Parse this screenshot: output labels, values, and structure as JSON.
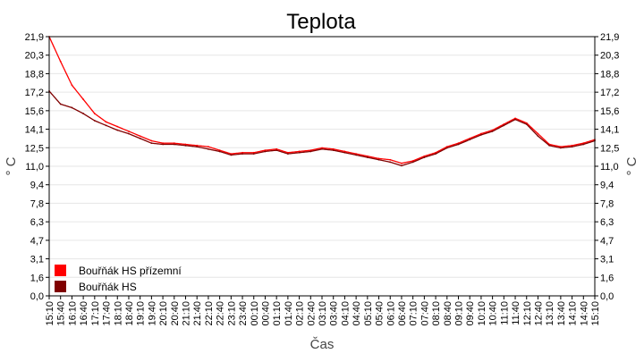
{
  "chart_data": {
    "type": "line",
    "title": "Teplota",
    "xlabel": "Čas",
    "ylabel": "° C",
    "y2label": "° C",
    "ylim": [
      0.0,
      21.9
    ],
    "yticks": [
      "0,0",
      "1,6",
      "3,1",
      "4,7",
      "6,3",
      "7,8",
      "9,4",
      "11,0",
      "12,5",
      "14,1",
      "15,6",
      "17,2",
      "18,8",
      "20,3",
      "21,9"
    ],
    "x_tick_labels": [
      "15:10",
      "15:40",
      "16:10",
      "16:40",
      "17:10",
      "17:40",
      "18:10",
      "18:40",
      "19:10",
      "19:40",
      "20:10",
      "20:40",
      "21:10",
      "21:40",
      "22:10",
      "22:40",
      "23:10",
      "23:40",
      "00:10",
      "00:40",
      "01:10",
      "01:40",
      "02:10",
      "02:40",
      "03:10",
      "03:40",
      "04:10",
      "04:40",
      "05:10",
      "05:40",
      "06:10",
      "06:40",
      "07:10",
      "07:40",
      "08:10",
      "08:40",
      "09:10",
      "09:40",
      "10:10",
      "10:40",
      "11:10",
      "11:40",
      "12:10",
      "12:40",
      "13:10",
      "13:40",
      "14:10",
      "14:40",
      "15:10"
    ],
    "grid": true,
    "legend_position": "bottom-left",
    "series": [
      {
        "name": "Bouřňák HS přízemní",
        "color": "#ff0000",
        "x": [
          "15:10",
          "15:40",
          "16:10",
          "16:40",
          "17:10",
          "17:40",
          "18:10",
          "18:40",
          "19:10",
          "19:40",
          "20:10",
          "20:40",
          "21:10",
          "21:40",
          "22:10",
          "22:40",
          "23:10",
          "23:40",
          "00:10",
          "00:40",
          "01:10",
          "01:40",
          "02:10",
          "02:40",
          "03:10",
          "03:40",
          "04:10",
          "04:40",
          "05:10",
          "05:40",
          "06:10",
          "06:40",
          "07:10",
          "07:40",
          "08:10",
          "08:40",
          "09:10",
          "09:40",
          "10:10",
          "10:40",
          "11:10",
          "11:40",
          "12:10",
          "12:40",
          "13:10",
          "13:40",
          "14:10",
          "14:40",
          "15:10"
        ],
        "values": [
          21.9,
          19.8,
          17.8,
          16.6,
          15.4,
          14.7,
          14.3,
          13.9,
          13.5,
          13.1,
          12.9,
          12.9,
          12.8,
          12.7,
          12.6,
          12.3,
          12.0,
          12.1,
          12.1,
          12.3,
          12.4,
          12.1,
          12.2,
          12.3,
          12.5,
          12.4,
          12.2,
          12.0,
          11.8,
          11.6,
          11.5,
          11.2,
          11.4,
          11.8,
          12.1,
          12.6,
          12.9,
          13.3,
          13.7,
          14.0,
          14.5,
          15.0,
          14.6,
          13.7,
          12.8,
          12.6,
          12.7,
          12.9,
          13.2
        ]
      },
      {
        "name": "Bouřňák HS",
        "color": "#800000",
        "x": [
          "15:10",
          "15:40",
          "16:10",
          "16:40",
          "17:10",
          "17:40",
          "18:10",
          "18:40",
          "19:10",
          "19:40",
          "20:10",
          "20:40",
          "21:10",
          "21:40",
          "22:10",
          "22:40",
          "23:10",
          "23:40",
          "00:10",
          "00:40",
          "01:10",
          "01:40",
          "02:10",
          "02:40",
          "03:10",
          "03:40",
          "04:10",
          "04:40",
          "05:10",
          "05:40",
          "06:10",
          "06:40",
          "07:10",
          "07:40",
          "08:10",
          "08:40",
          "09:10",
          "09:40",
          "10:10",
          "10:40",
          "11:10",
          "11:40",
          "12:10",
          "12:40",
          "13:10",
          "13:40",
          "14:10",
          "14:40",
          "15:10"
        ],
        "values": [
          17.3,
          16.2,
          15.9,
          15.4,
          14.8,
          14.4,
          14.0,
          13.7,
          13.3,
          12.9,
          12.8,
          12.8,
          12.7,
          12.6,
          12.4,
          12.2,
          11.9,
          12.0,
          12.0,
          12.2,
          12.3,
          12.0,
          12.1,
          12.2,
          12.4,
          12.3,
          12.1,
          11.9,
          11.7,
          11.5,
          11.3,
          11.0,
          11.3,
          11.7,
          12.0,
          12.5,
          12.8,
          13.2,
          13.6,
          13.9,
          14.4,
          14.9,
          14.5,
          13.5,
          12.7,
          12.5,
          12.6,
          12.8,
          13.1
        ]
      }
    ]
  }
}
